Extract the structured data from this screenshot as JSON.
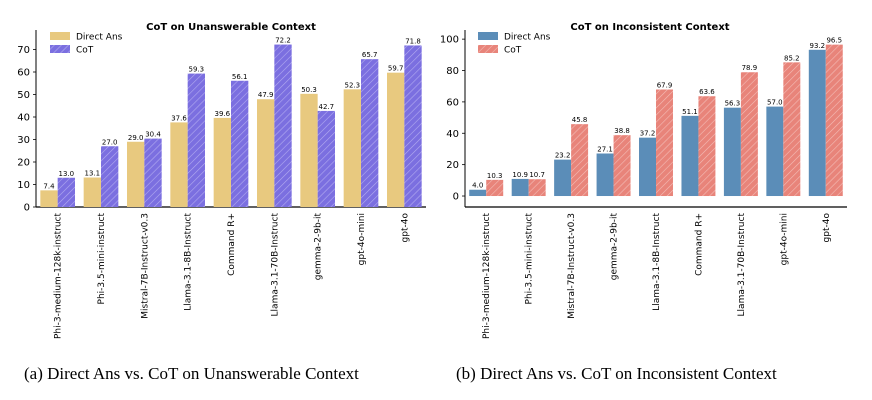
{
  "captions": {
    "a": "(a) Direct Ans vs. CoT on Unanswerable Context",
    "b": "(b) Direct Ans vs. CoT on Inconsistent Context"
  },
  "chart_data": [
    {
      "type": "bar",
      "title": "CoT on Unanswerable Context",
      "categories": [
        "Phi-3-medium-128k-instruct",
        "Phi-3.5-mini-instruct",
        "Mistral-7B-Instruct-v0.3",
        "Llama-3.1-8B-Instruct",
        "Command R+",
        "Llama-3.1-70B-Instruct",
        "gemma-2-9b-it",
        "gpt-4o-mini",
        "gpt-4o"
      ],
      "highlighted_categories": [
        "Command R+",
        "gpt-4o-mini",
        "gpt-4o"
      ],
      "highlight_color": "#c8860a",
      "series": [
        {
          "name": "Direct Ans",
          "values": [
            7.4,
            13.1,
            29.0,
            37.6,
            39.6,
            47.9,
            50.3,
            52.3,
            59.7
          ],
          "color": "#e8c97f"
        },
        {
          "name": "CoT",
          "values": [
            13.0,
            27.0,
            30.4,
            59.3,
            56.1,
            72.2,
            42.7,
            65.7,
            71.8
          ],
          "color": "#7b6fe0",
          "hatch": true
        }
      ],
      "ylim": [
        0,
        76
      ],
      "yticks": [
        0,
        10,
        20,
        30,
        40,
        50,
        60,
        70
      ],
      "legend": "top-left",
      "grid": false
    },
    {
      "type": "bar",
      "title": "CoT on Inconsistent Context",
      "categories": [
        "Phi-3-medium-128k-instruct",
        "Phi-3.5-mini-instruct",
        "Mistral-7B-Instruct-v0.3",
        "gemma-2-9b-it",
        "Llama-3.1-8B-Instruct",
        "Command R+",
        "Llama-3.1-70B-Instruct",
        "gpt-4o-mini",
        "gpt-4o"
      ],
      "highlighted_categories": [
        "Command R+",
        "gpt-4o-mini",
        "gpt-4o"
      ],
      "highlight_color": "#c8860a",
      "series": [
        {
          "name": "Direct Ans",
          "values": [
            4.0,
            10.9,
            23.2,
            27.1,
            37.2,
            51.1,
            56.3,
            57.0,
            93.2
          ],
          "color": "#5b8db8"
        },
        {
          "name": "CoT",
          "values": [
            10.3,
            10.7,
            45.8,
            38.8,
            67.9,
            63.6,
            78.9,
            85.2,
            96.5
          ],
          "color": "#e8847a",
          "hatch": true
        }
      ],
      "ylim": [
        -7,
        102
      ],
      "yticks": [
        0,
        20,
        40,
        60,
        80,
        100
      ],
      "legend": "top-left",
      "grid": false
    }
  ]
}
